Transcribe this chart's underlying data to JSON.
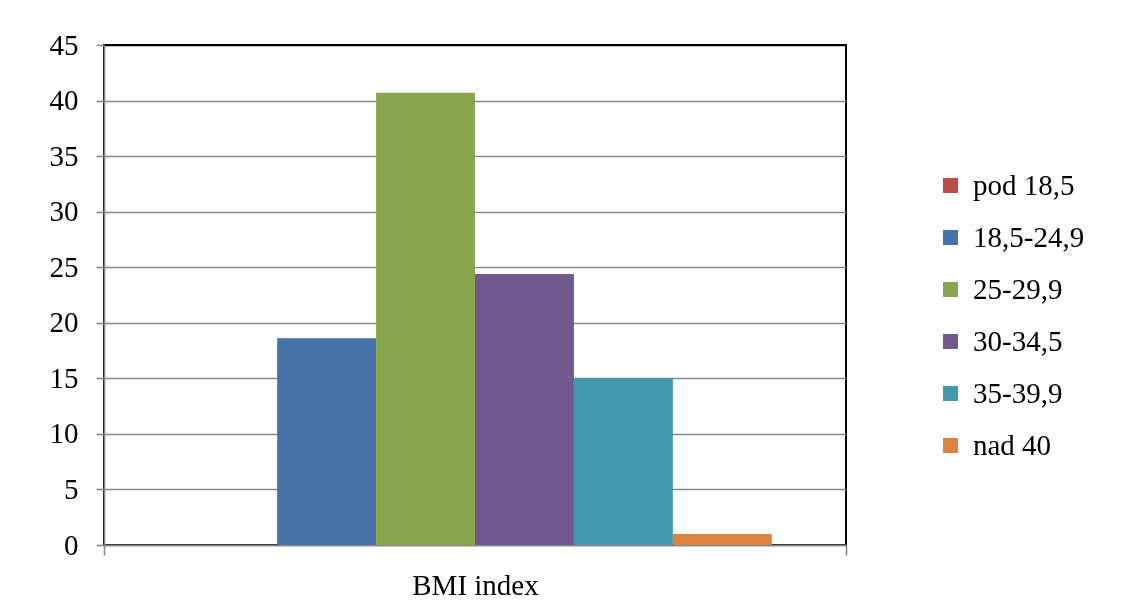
{
  "chart_data": {
    "type": "bar",
    "categories": [
      "BMI index"
    ],
    "series": [
      {
        "name": "pod 18,5",
        "color": "#be4b48",
        "values": [
          0
        ]
      },
      {
        "name": "18,5-24,9",
        "color": "#4572a7",
        "values": [
          18.6
        ]
      },
      {
        "name": "25-29,9",
        "color": "#89a54e",
        "values": [
          40.7
        ]
      },
      {
        "name": "30-34,5",
        "color": "#71588f",
        "values": [
          24.4
        ]
      },
      {
        "name": "35-39,9",
        "color": "#4198af",
        "values": [
          15.0
        ]
      },
      {
        "name": "nad 40",
        "color": "#db843d",
        "values": [
          1.0
        ]
      }
    ],
    "ylim": [
      0,
      45
    ],
    "yticks": [
      0,
      5,
      10,
      15,
      20,
      25,
      30,
      35,
      40,
      45
    ],
    "grid": "y",
    "legend": "right"
  }
}
